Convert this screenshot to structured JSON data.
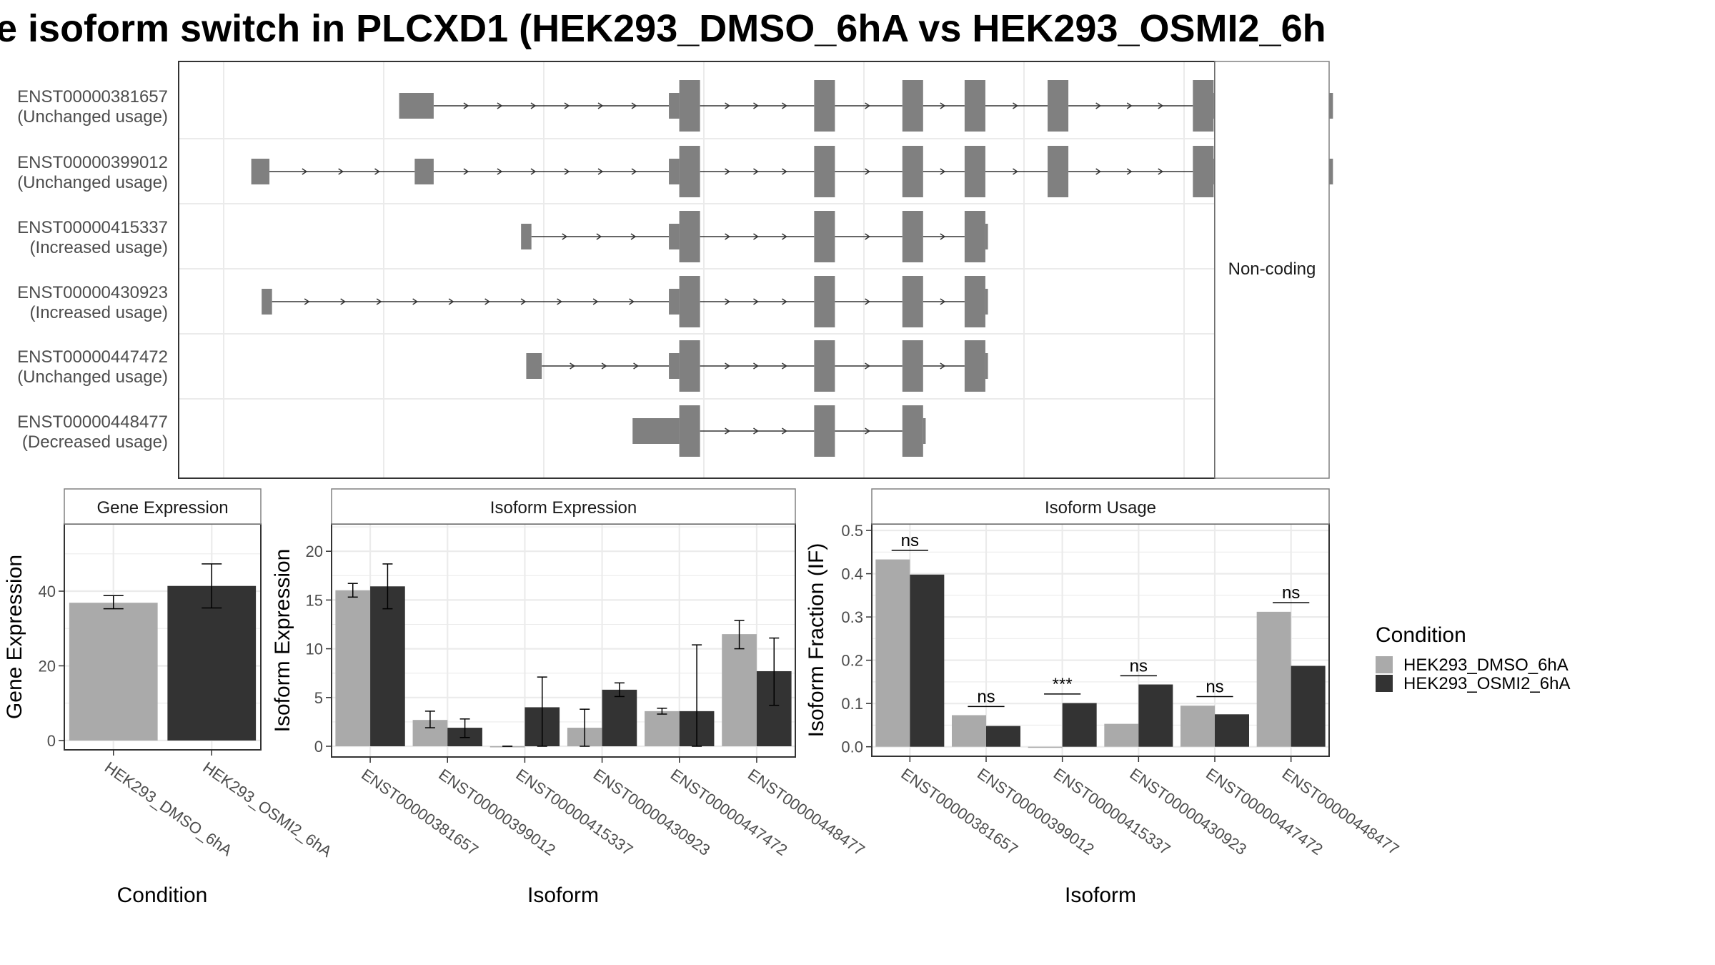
{
  "title": "e isoform switch in PLCXD1 (HEK293_DMSO_6hA vs HEK293_OSMI2_6h",
  "colors": {
    "exon": "#808080",
    "dmso": "#aaaaaa",
    "osmi2": "#333333",
    "grid": "#ebebeb",
    "panel_border": "#333333",
    "strip_border": "#808080"
  },
  "structure_panel": {
    "side_label": "Non-coding",
    "transcripts": [
      {
        "id": "ENST00000381657",
        "usage": "(Unchanged usage)",
        "exons": [
          [
            0.2125,
            0.2458,
            "thin"
          ],
          [
            0.4725,
            0.4825,
            "thin"
          ],
          [
            0.4825,
            0.5025,
            "thick"
          ],
          [
            0.6125,
            0.6325,
            "thick"
          ],
          [
            0.6975,
            0.7175,
            "thick"
          ],
          [
            0.7575,
            0.7775,
            "thick"
          ],
          [
            0.8375,
            0.8575,
            "thick"
          ],
          [
            0.9775,
            0.9975,
            "thick"
          ],
          [
            0.9975,
            1.1125,
            "thin"
          ]
        ]
      },
      {
        "id": "ENST00000399012",
        "usage": "(Unchanged usage)",
        "exons": [
          [
            0.07,
            0.0875,
            "thin"
          ],
          [
            0.2275,
            0.2458,
            "thin"
          ],
          [
            0.4725,
            0.4825,
            "thin"
          ],
          [
            0.4825,
            0.5025,
            "thick"
          ],
          [
            0.6125,
            0.6325,
            "thick"
          ],
          [
            0.6975,
            0.7175,
            "thick"
          ],
          [
            0.7575,
            0.7775,
            "thick"
          ],
          [
            0.8375,
            0.8575,
            "thick"
          ],
          [
            0.9775,
            0.9975,
            "thick"
          ],
          [
            0.9975,
            1.1125,
            "thin"
          ]
        ]
      },
      {
        "id": "ENST00000415337",
        "usage": "(Increased usage)",
        "exons": [
          [
            0.33,
            0.34,
            "thin"
          ],
          [
            0.4725,
            0.4825,
            "thin"
          ],
          [
            0.4825,
            0.5025,
            "thick"
          ],
          [
            0.6125,
            0.6325,
            "thick"
          ],
          [
            0.6975,
            0.7175,
            "thick"
          ],
          [
            0.7575,
            0.7775,
            "thick"
          ],
          [
            0.7775,
            0.78,
            "thin"
          ]
        ]
      },
      {
        "id": "ENST00000430923",
        "usage": "(Increased usage)",
        "exons": [
          [
            0.08,
            0.09,
            "thin"
          ],
          [
            0.4725,
            0.4825,
            "thin"
          ],
          [
            0.4825,
            0.5025,
            "thick"
          ],
          [
            0.6125,
            0.6325,
            "thick"
          ],
          [
            0.6975,
            0.7175,
            "thick"
          ],
          [
            0.7575,
            0.7775,
            "thick"
          ],
          [
            0.7775,
            0.78,
            "thin"
          ]
        ]
      },
      {
        "id": "ENST00000447472",
        "usage": "(Unchanged usage)",
        "exons": [
          [
            0.335,
            0.35,
            "thin"
          ],
          [
            0.4725,
            0.4825,
            "thin"
          ],
          [
            0.4825,
            0.5025,
            "thick"
          ],
          [
            0.6125,
            0.6325,
            "thick"
          ],
          [
            0.6975,
            0.7175,
            "thick"
          ],
          [
            0.7575,
            0.7775,
            "thick"
          ],
          [
            0.7775,
            0.78,
            "thin"
          ]
        ]
      },
      {
        "id": "ENST00000448477",
        "usage": "(Decreased usage)",
        "exons": [
          [
            0.4375,
            0.4825,
            "thin"
          ],
          [
            0.4825,
            0.5025,
            "thick"
          ],
          [
            0.6125,
            0.6325,
            "thick"
          ],
          [
            0.6975,
            0.7175,
            "thick"
          ],
          [
            0.7175,
            0.72,
            "thin"
          ]
        ]
      }
    ]
  },
  "chart_data": [
    {
      "type": "bar",
      "title": "Gene Expression",
      "xlabel": "Condition",
      "ylabel": "Gene Expression",
      "categories": [
        "HEK293_DMSO_6hA",
        "HEK293_OSMI2_6hA"
      ],
      "values": [
        36.9,
        41.4
      ],
      "error_low": [
        35.3,
        35.5
      ],
      "error_high": [
        38.8,
        47.3
      ],
      "ylim": [
        -2.5,
        58
      ],
      "yticks": [
        0,
        20,
        40
      ]
    },
    {
      "type": "bar",
      "title": "Isoform Expression",
      "xlabel": "Isoform",
      "ylabel": "Isoform Expression",
      "categories": [
        "ENST00000381657",
        "ENST00000399012",
        "ENST00000415337",
        "ENST00000430923",
        "ENST00000447472",
        "ENST00000448477"
      ],
      "series": [
        {
          "name": "HEK293_DMSO_6hA",
          "values": [
            16.0,
            2.7,
            0.0,
            1.9,
            3.6,
            11.5
          ],
          "error_low": [
            15.3,
            1.9,
            0.0,
            0.0,
            3.3,
            10.0
          ],
          "error_high": [
            16.7,
            3.6,
            0.0,
            3.8,
            3.9,
            12.9
          ]
        },
        {
          "name": "HEK293_OSMI2_6hA",
          "values": [
            16.4,
            1.9,
            4.0,
            5.8,
            3.6,
            7.7
          ],
          "error_low": [
            14.1,
            0.9,
            0.0,
            5.1,
            0.0,
            4.2
          ],
          "error_high": [
            18.7,
            2.8,
            7.1,
            6.5,
            10.4,
            11.1
          ]
        }
      ],
      "ylim": [
        -1.1,
        22.8
      ],
      "yticks": [
        0,
        5,
        10,
        15,
        20
      ]
    },
    {
      "type": "bar",
      "title": "Isoform Usage",
      "xlabel": "Isoform",
      "ylabel": "Isoform Fraction (IF)",
      "categories": [
        "ENST00000381657",
        "ENST00000399012",
        "ENST00000415337",
        "ENST00000430923",
        "ENST00000447472",
        "ENST00000448477"
      ],
      "series": [
        {
          "name": "HEK293_DMSO_6hA",
          "values": [
            0.433,
            0.073,
            0.0,
            0.053,
            0.095,
            0.312
          ]
        },
        {
          "name": "HEK293_OSMI2_6hA",
          "values": [
            0.398,
            0.048,
            0.101,
            0.144,
            0.075,
            0.187
          ]
        }
      ],
      "significance": [
        "ns",
        "ns",
        "***",
        "ns",
        "ns",
        "ns"
      ],
      "sig_y": [
        0.454,
        0.093,
        0.122,
        0.164,
        0.116,
        0.333
      ],
      "ylim": [
        -0.022,
        0.515
      ],
      "yticks": [
        0.0,
        0.1,
        0.2,
        0.3,
        0.4,
        0.5
      ],
      "ytick_labels": [
        "0.0",
        "0.1",
        "0.2",
        "0.3",
        "0.4",
        "0.5"
      ]
    }
  ],
  "legend": {
    "title": "Condition",
    "entries": [
      {
        "label": "HEK293_DMSO_6hA",
        "color": "#aaaaaa"
      },
      {
        "label": "HEK293_OSMI2_6hA",
        "color": "#333333"
      }
    ]
  }
}
